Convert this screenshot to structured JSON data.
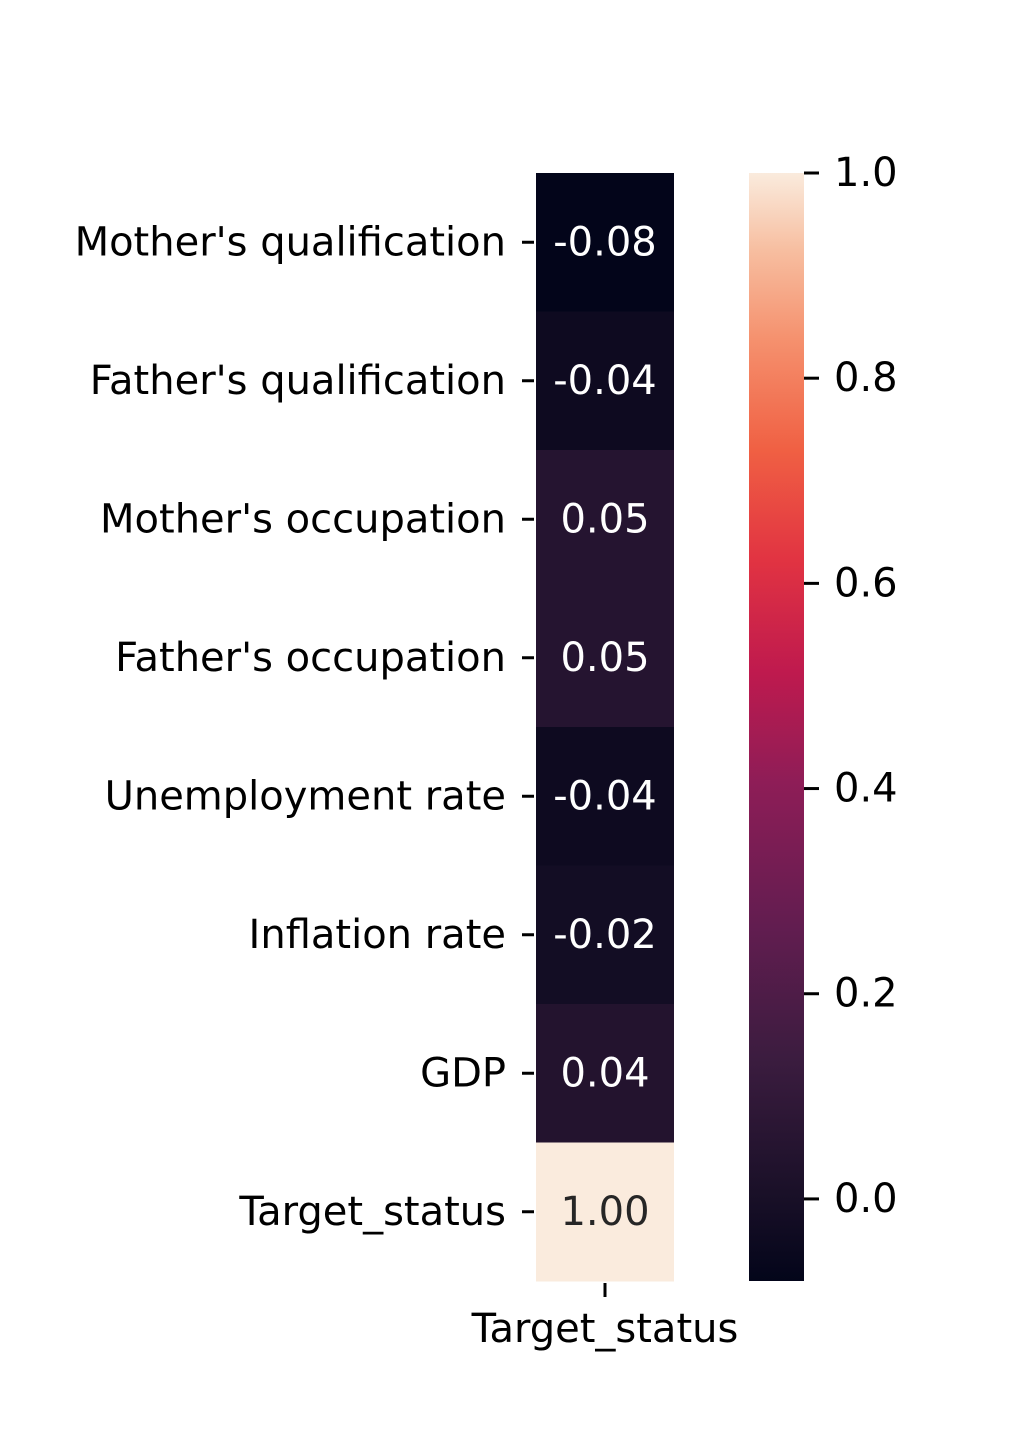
{
  "chart_data": {
    "type": "heatmap",
    "rows": [
      "Mother's qualification",
      "Father's qualification",
      "Mother's occupation",
      "Father's occupation",
      "Unemployment rate",
      "Inflation rate",
      "GDP",
      "Target_status"
    ],
    "columns": [
      "Target_status"
    ],
    "values": [
      [
        -0.08
      ],
      [
        -0.04
      ],
      [
        0.05
      ],
      [
        0.05
      ],
      [
        -0.04
      ],
      [
        -0.02
      ],
      [
        0.04
      ],
      [
        1.0
      ]
    ],
    "value_labels": [
      [
        "-0.08"
      ],
      [
        "-0.04"
      ],
      [
        "0.05"
      ],
      [
        "0.05"
      ],
      [
        "-0.04"
      ],
      [
        "-0.02"
      ],
      [
        "0.04"
      ],
      [
        "1.00"
      ]
    ],
    "colormap": "rocket",
    "colorbar": {
      "range": [
        -0.08,
        1.0
      ],
      "ticks": [
        0.0,
        0.2,
        0.4,
        0.6,
        0.8,
        1.0
      ],
      "tick_labels": [
        "0.0",
        "0.2",
        "0.4",
        "0.6",
        "0.8",
        "1.0"
      ],
      "placement": "right"
    },
    "annotations": "values shown in cells"
  }
}
